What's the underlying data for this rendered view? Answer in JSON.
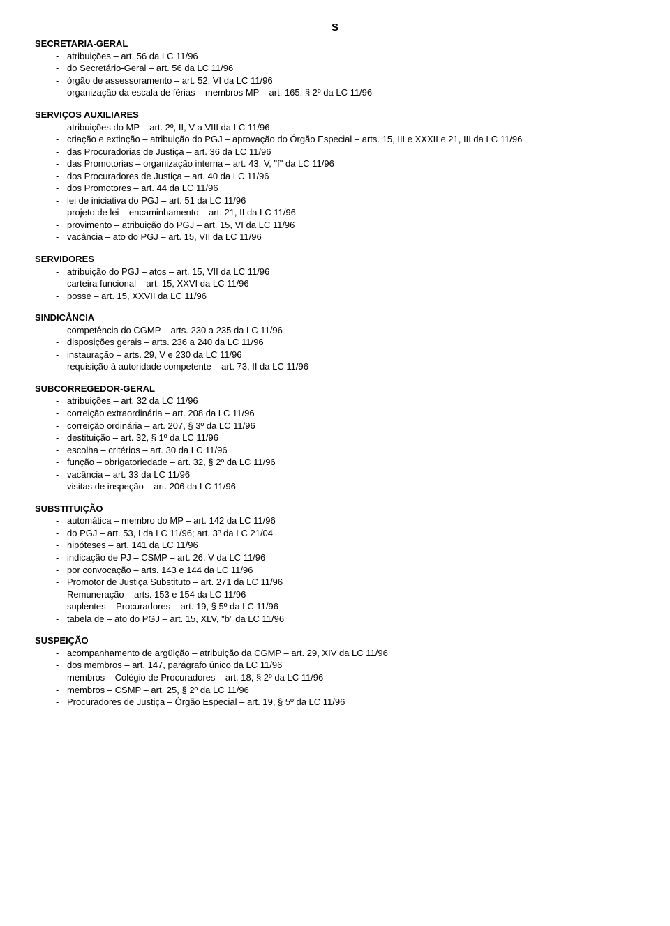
{
  "letter": "S",
  "sections": [
    {
      "title": "SECRETARIA-GERAL",
      "items": [
        "atribuições – art. 56 da LC 11/96",
        "do Secretário-Geral – art. 56 da LC 11/96",
        "órgão de assessoramento – art. 52, VI da LC 11/96",
        "organização da escala de férias – membros MP – art. 165, § 2º da LC 11/96"
      ]
    },
    {
      "title": "SERVIÇOS AUXILIARES",
      "items": [
        "atribuições do MP – art. 2º, II, V a VIII da LC 11/96",
        "criação e extinção – atribuição do PGJ – aprovação do Órgão Especial – arts. 15, III e XXXII e 21, III da LC 11/96",
        "das Procuradorias de Justiça – art. 36 da LC 11/96",
        "das Promotorias – organização interna – art. 43, V, \"f\" da LC 11/96",
        "dos Procuradores de Justiça – art. 40 da LC 11/96",
        "dos Promotores – art. 44 da LC 11/96",
        "lei de iniciativa do PGJ – art. 51 da LC 11/96",
        "projeto de lei – encaminhamento – art. 21, II da LC 11/96",
        "provimento – atribuição do PGJ – art. 15, VI da LC 11/96",
        "vacância – ato do PGJ – art. 15, VII da LC 11/96"
      ]
    },
    {
      "title": "SERVIDORES",
      "items": [
        "atribuição do PGJ – atos – art. 15, VII da LC 11/96",
        "carteira funcional – art. 15, XXVI da LC 11/96",
        "posse – art. 15, XXVII da LC 11/96"
      ]
    },
    {
      "title": "SINDICÂNCIA",
      "items": [
        "competência do CGMP – arts. 230 a 235 da LC 11/96",
        "disposições gerais – arts. 236 a 240 da LC 11/96",
        "instauração – arts. 29, V e 230 da LC 11/96",
        "requisição à autoridade competente – art. 73, II da LC 11/96"
      ]
    },
    {
      "title": "SUBCORREGEDOR-GERAL",
      "items": [
        "atribuições – art. 32 da LC 11/96",
        "correição extraordinária – art. 208 da LC 11/96",
        "correição ordinária – art. 207, § 3º da LC 11/96",
        "destituição – art. 32, § 1º da LC 11/96",
        "escolha – critérios – art. 30 da LC 11/96",
        "função – obrigatoriedade – art. 32, § 2º da LC 11/96",
        "vacância – art. 33 da LC 11/96",
        "visitas de inspeção – art. 206 da LC 11/96"
      ]
    },
    {
      "title": "SUBSTITUIÇÃO",
      "items": [
        "automática – membro do MP – art. 142 da LC 11/96",
        "do PGJ – art. 53, I da LC 11/96; art. 3º da LC 21/04",
        "hipóteses – art. 141 da LC 11/96",
        "indicação de PJ – CSMP – art. 26, V da LC 11/96",
        "por convocação – arts. 143 e 144 da LC 11/96",
        "Promotor de Justiça Substituto – art. 271 da LC 11/96",
        "Remuneração – arts. 153 e 154 da LC 11/96",
        "suplentes – Procuradores – art. 19, § 5º da LC 11/96",
        "tabela de – ato do PGJ – art. 15, XLV, \"b\" da LC 11/96"
      ]
    },
    {
      "title": "SUSPEIÇÃO",
      "items": [
        "acompanhamento de argüição – atribuição da CGMP – art. 29, XIV da LC 11/96",
        "dos membros – art. 147, parágrafo único da LC 11/96",
        "membros – Colégio de Procuradores – art. 18, § 2º da LC 11/96",
        "membros – CSMP – art. 25, § 2º da LC 11/96",
        "Procuradores de Justiça – Órgão Especial – art. 19, § 5º da LC 11/96"
      ]
    }
  ]
}
